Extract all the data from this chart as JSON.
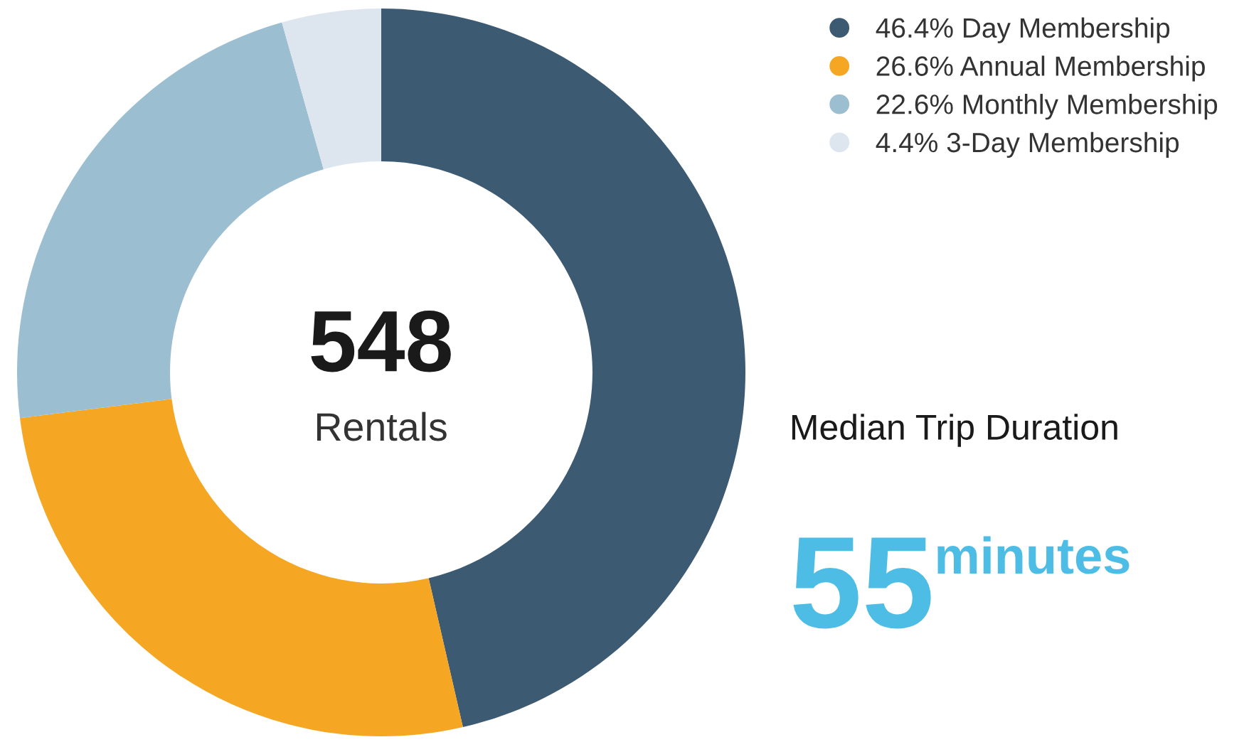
{
  "chart_data": {
    "type": "donut",
    "categories": [
      "Day Membership",
      "Annual Membership",
      "Monthly Membership",
      "3-Day Membership"
    ],
    "values": [
      46.4,
      26.6,
      22.6,
      4.4
    ],
    "value_labels": [
      "46.4%",
      "26.6%",
      "22.6%",
      "4.4%"
    ],
    "colors": [
      "#3d5a73",
      "#f5a623",
      "#9bbfd1",
      "#dde6ee"
    ],
    "legend": "top right",
    "annotations": [
      "548",
      "Rentals",
      "Median Trip Duration",
      "55",
      "minutes"
    ]
  }
}
